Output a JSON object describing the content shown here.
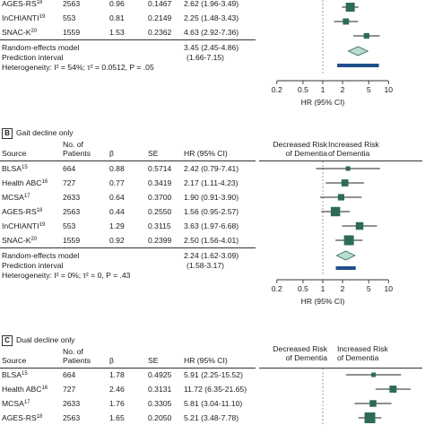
{
  "columns": {
    "source": "Source",
    "n": "No. of\nPatients",
    "beta": "β",
    "se": "SE",
    "hr": "HR (95% CI)"
  },
  "direction": {
    "decreased": "Decreased Risk\nof Dementia",
    "increased": "Increased Risk\nof Dementia"
  },
  "axis": {
    "label": "HR (95% CI)",
    "scale": "log",
    "ticks": [
      "0.2",
      "0.5",
      "1",
      "2",
      "5",
      "10"
    ],
    "reference": 1
  },
  "colors": {
    "study_box": "#2d6a5a",
    "summary_diamond": "#b8dccd",
    "prediction_bar": "#1d4f8a",
    "axis": "#333333",
    "ref_line": "#888888"
  },
  "panels": [
    {
      "label": "A",
      "title": "",
      "rows": [
        {
          "source": "AGES-RS",
          "sup": "18",
          "n": "2563",
          "beta": "0.96",
          "se": "0.1467",
          "hr_text": "2.62 (1.96-3.49)",
          "hr": 2.62,
          "lo": 1.96,
          "hi": 3.49
        },
        {
          "source": "InCHIANTI",
          "sup": "19",
          "n": "553",
          "beta": "0.81",
          "se": "0.2149",
          "hr_text": "2.25 (1.48-3.43)",
          "hr": 2.25,
          "lo": 1.48,
          "hi": 3.43
        },
        {
          "source": "SNAC-K",
          "sup": "20",
          "n": "1559",
          "beta": "1.53",
          "se": "0.2362",
          "hr_text": "4.63 (2.92-7.36)",
          "hr": 4.63,
          "lo": 2.92,
          "hi": 7.36
        }
      ],
      "summary": {
        "label": "Random-effects model",
        "hr_text": "3.45 (2.45-4.86)",
        "hr": 3.45,
        "lo": 2.45,
        "hi": 4.86
      },
      "prediction": {
        "label": "Prediction interval",
        "hr_text": "(1.66-7.15)",
        "lo": 1.66,
        "hi": 7.15
      },
      "heterogeneity": "Heterogeneity: I² = 54%; τ² = 0.0512, P = .05"
    },
    {
      "label": "B",
      "title": "Gait decline only",
      "rows": [
        {
          "source": "BLSA",
          "sup": "15",
          "n": "664",
          "beta": "0.88",
          "se": "0.5714",
          "hr_text": "2.42 (0.79-7.41)",
          "hr": 2.42,
          "lo": 0.79,
          "hi": 7.41
        },
        {
          "source": "Health ABC",
          "sup": "16",
          "n": "727",
          "beta": "0.77",
          "se": "0.3419",
          "hr_text": "2.17 (1.11-4.23)",
          "hr": 2.17,
          "lo": 1.11,
          "hi": 4.23
        },
        {
          "source": "MCSA",
          "sup": "17",
          "n": "2633",
          "beta": "0.64",
          "se": "0.3700",
          "hr_text": "1.90 (0.91-3.90)",
          "hr": 1.9,
          "lo": 0.91,
          "hi": 3.9
        },
        {
          "source": "AGES-RS",
          "sup": "18",
          "n": "2563",
          "beta": "0.44",
          "se": "0.2550",
          "hr_text": "1.56 (0.95-2.57)",
          "hr": 1.56,
          "lo": 0.95,
          "hi": 2.57
        },
        {
          "source": "InCHIANTI",
          "sup": "19",
          "n": "553",
          "beta": "1.29",
          "se": "0.3115",
          "hr_text": "3.63 (1.97-6.68)",
          "hr": 3.63,
          "lo": 1.97,
          "hi": 6.68
        },
        {
          "source": "SNAC-K",
          "sup": "20",
          "n": "1559",
          "beta": "0.92",
          "se": "0.2399",
          "hr_text": "2.50 (1.56-4.01)",
          "hr": 2.5,
          "lo": 1.56,
          "hi": 4.01
        }
      ],
      "summary": {
        "label": "Random-effects model",
        "hr_text": "2.24 (1.62-3.09)",
        "hr": 2.24,
        "lo": 1.62,
        "hi": 3.09
      },
      "prediction": {
        "label": "Prediction interval",
        "hr_text": "(1.58-3.17)",
        "lo": 1.58,
        "hi": 3.17
      },
      "heterogeneity": "Heterogeneity: I² = 0%; τ² = 0, P = .43"
    },
    {
      "label": "C",
      "title": "Dual decline only",
      "rows": [
        {
          "source": "BLSA",
          "sup": "15",
          "n": "664",
          "beta": "1.78",
          "se": "0.4925",
          "hr_text": "5.91 (2.25-15.52)",
          "hr": 5.91,
          "lo": 2.25,
          "hi": 15.52
        },
        {
          "source": "Health ABC",
          "sup": "16",
          "n": "727",
          "beta": "2.46",
          "se": "0.3131",
          "hr_text": "11.72 (6.35-21.65)",
          "hr": 11.72,
          "lo": 6.35,
          "hi": 21.65
        },
        {
          "source": "MCSA",
          "sup": "17",
          "n": "2633",
          "beta": "1.76",
          "se": "0.3305",
          "hr_text": "5.81 (3.04-11.10)",
          "hr": 5.81,
          "lo": 3.04,
          "hi": 11.1
        },
        {
          "source": "AGES-RS",
          "sup": "18",
          "n": "2563",
          "beta": "1.65",
          "se": "0.2050",
          "hr_text": "5.21 (3.48-7.78)",
          "hr": 5.21,
          "lo": 3.48,
          "hi": 7.78
        }
      ]
    }
  ],
  "chart_data": [
    {
      "type": "forest",
      "panel": "A",
      "x_scale": "log",
      "xlabel": "HR (95% CI)",
      "xlim": [
        0.2,
        10
      ],
      "reference_line": 1,
      "studies": [
        {
          "name": "AGES-RS",
          "hr": 2.62,
          "lo": 1.96,
          "hi": 3.49
        },
        {
          "name": "InCHIANTI",
          "hr": 2.25,
          "lo": 1.48,
          "hi": 3.43
        },
        {
          "name": "SNAC-K",
          "hr": 4.63,
          "lo": 2.92,
          "hi": 7.36
        }
      ],
      "pooled": {
        "hr": 3.45,
        "lo": 2.45,
        "hi": 4.86
      },
      "prediction_interval": [
        1.66,
        7.15
      ]
    },
    {
      "type": "forest",
      "panel": "B",
      "x_scale": "log",
      "xlabel": "HR (95% CI)",
      "xlim": [
        0.2,
        10
      ],
      "reference_line": 1,
      "studies": [
        {
          "name": "BLSA",
          "hr": 2.42,
          "lo": 0.79,
          "hi": 7.41
        },
        {
          "name": "Health ABC",
          "hr": 2.17,
          "lo": 1.11,
          "hi": 4.23
        },
        {
          "name": "MCSA",
          "hr": 1.9,
          "lo": 0.91,
          "hi": 3.9
        },
        {
          "name": "AGES-RS",
          "hr": 1.56,
          "lo": 0.95,
          "hi": 2.57
        },
        {
          "name": "InCHIANTI",
          "hr": 3.63,
          "lo": 1.97,
          "hi": 6.68
        },
        {
          "name": "SNAC-K",
          "hr": 2.5,
          "lo": 1.56,
          "hi": 4.01
        }
      ],
      "pooled": {
        "hr": 2.24,
        "lo": 1.62,
        "hi": 3.09
      },
      "prediction_interval": [
        1.58,
        3.17
      ]
    },
    {
      "type": "forest",
      "panel": "C",
      "x_scale": "log",
      "reference_line": 1,
      "studies": [
        {
          "name": "BLSA",
          "hr": 5.91,
          "lo": 2.25,
          "hi": 15.52
        },
        {
          "name": "Health ABC",
          "hr": 11.72,
          "lo": 6.35,
          "hi": 21.65
        },
        {
          "name": "MCSA",
          "hr": 5.81,
          "lo": 3.04,
          "hi": 11.1
        },
        {
          "name": "AGES-RS",
          "hr": 5.21,
          "lo": 3.48,
          "hi": 7.78
        }
      ]
    }
  ]
}
